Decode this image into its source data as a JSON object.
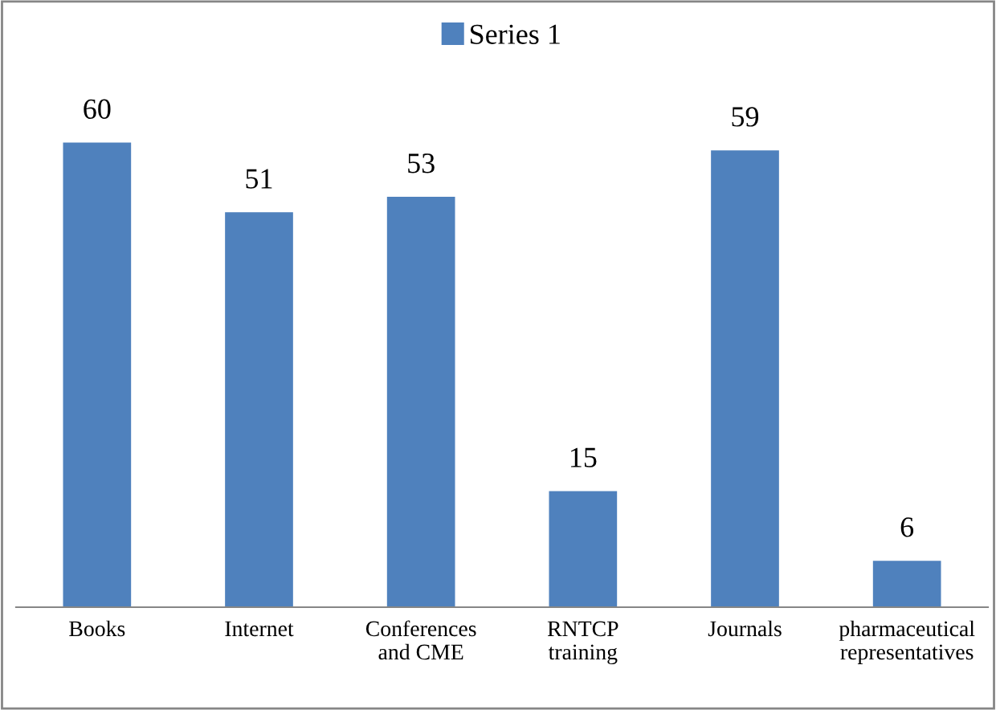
{
  "chart_data": {
    "type": "bar",
    "categories": [
      "Books",
      "Internet",
      "Conferences\nand CME",
      "RNTCP\ntraining",
      "Journals",
      "pharmaceutical\nrepresentatives"
    ],
    "series": [
      {
        "name": "Series 1",
        "color": "#4f81bd",
        "values": [
          60,
          51,
          53,
          15,
          59,
          6
        ]
      }
    ],
    "data_labels": true,
    "legend": "top",
    "grid": false
  }
}
